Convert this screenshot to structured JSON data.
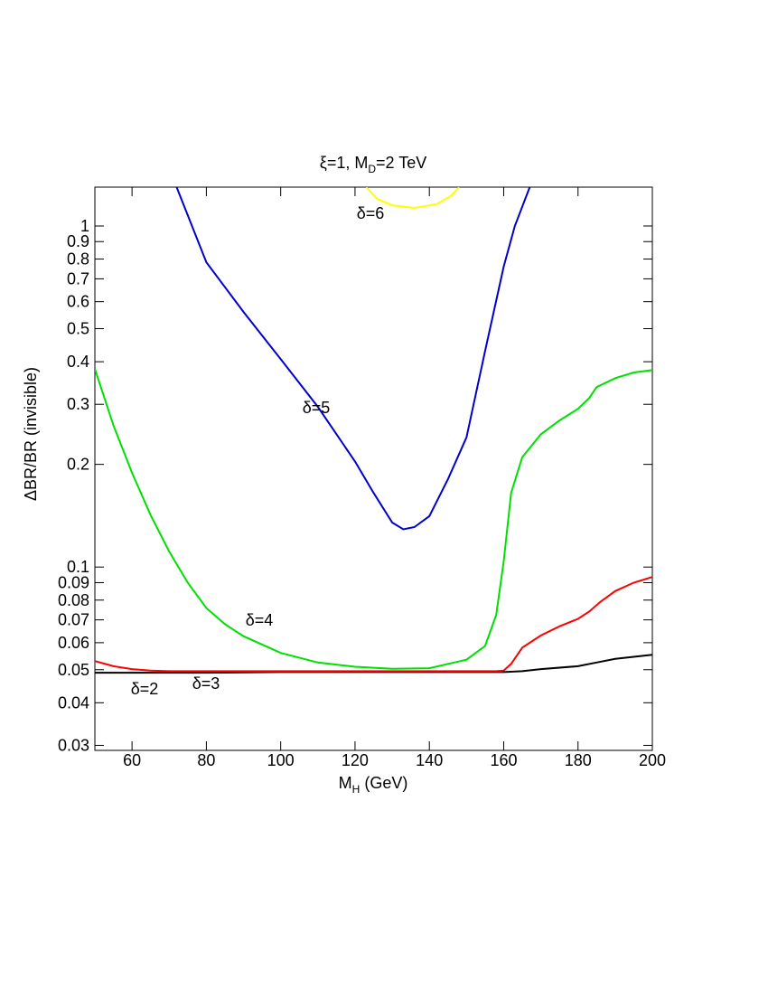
{
  "chart_data": {
    "type": "line",
    "title": [
      "ξ=1, M",
      "D",
      "=2 TeV"
    ],
    "xlabel": [
      "M",
      "H",
      " (GeV)"
    ],
    "ylabel": "ΔBR/BR (invisible)",
    "log_y": true,
    "xlim": [
      50,
      200
    ],
    "ylim": [
      0.029,
      1.3
    ],
    "xticks": [
      60,
      80,
      100,
      120,
      140,
      160,
      180,
      200
    ],
    "yticks": [
      0.03,
      0.04,
      0.05,
      0.06,
      0.07,
      0.08,
      0.09,
      0.1,
      0.2,
      0.3,
      0.4,
      0.5,
      0.6,
      0.7,
      0.8,
      0.9,
      1
    ],
    "series": [
      {
        "name": "δ=2",
        "color": "#000000",
        "x": [
          50,
          60,
          80,
          100,
          120,
          140,
          160,
          165,
          170,
          180,
          185,
          190,
          200
        ],
        "values": [
          0.049,
          0.049,
          0.049,
          0.0492,
          0.0492,
          0.0492,
          0.0492,
          0.0495,
          0.0502,
          0.0512,
          0.0525,
          0.0538,
          0.0553
        ]
      },
      {
        "name": "δ=3",
        "color": "#ff0000",
        "x": [
          50,
          55,
          60,
          65,
          70,
          100,
          150,
          158,
          160,
          162,
          165,
          170,
          175,
          180,
          183,
          186,
          190,
          195,
          200
        ],
        "values": [
          0.053,
          0.0512,
          0.0502,
          0.0497,
          0.0495,
          0.0495,
          0.0495,
          0.0495,
          0.0497,
          0.052,
          0.058,
          0.063,
          0.067,
          0.0705,
          0.074,
          0.079,
          0.085,
          0.09,
          0.0935
        ]
      },
      {
        "name": "δ=4",
        "color": "#00e000",
        "x": [
          50,
          55,
          60,
          65,
          70,
          75,
          80,
          85,
          90,
          100,
          110,
          120,
          130,
          140,
          150,
          155,
          158,
          160,
          162,
          165,
          170,
          175,
          180,
          183,
          185,
          190,
          195,
          200
        ],
        "values": [
          0.381,
          0.26,
          0.189,
          0.142,
          0.111,
          0.09,
          0.0758,
          0.068,
          0.0627,
          0.056,
          0.0525,
          0.051,
          0.0503,
          0.0505,
          0.0535,
          0.0587,
          0.0724,
          0.104,
          0.165,
          0.21,
          0.245,
          0.269,
          0.291,
          0.313,
          0.337,
          0.358,
          0.372,
          0.378
        ]
      },
      {
        "name": "δ=5",
        "color": "#0000cc",
        "x": [
          72,
          80,
          90,
          100,
          110,
          120,
          125,
          130,
          133,
          136,
          140,
          145,
          150,
          155,
          160,
          163,
          167
        ],
        "values": [
          1.3,
          0.783,
          0.56,
          0.407,
          0.295,
          0.204,
          0.165,
          0.135,
          0.129,
          0.131,
          0.141,
          0.181,
          0.24,
          0.43,
          0.76,
          1.0,
          1.3
        ]
      },
      {
        "name": "δ=6",
        "color": "#ffff00",
        "x": [
          123,
          126,
          130,
          136,
          142,
          146,
          148
        ],
        "values": [
          1.3,
          1.2,
          1.15,
          1.13,
          1.16,
          1.23,
          1.3
        ]
      }
    ]
  }
}
